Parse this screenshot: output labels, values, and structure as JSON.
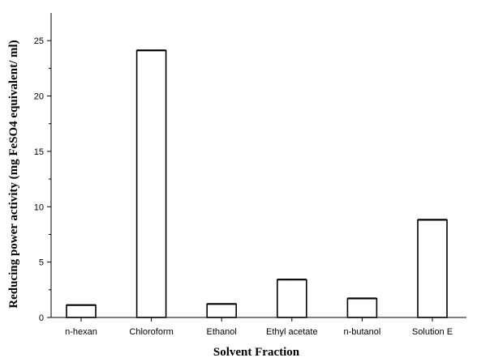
{
  "chart_data": {
    "type": "bar",
    "title": "",
    "xlabel": "Solvent Fraction",
    "ylabel": "Reducing power activity (mg FeSO4 equivalent/ ml)",
    "categories": [
      "n-hexan",
      "Chloroform",
      "Ethanol",
      "Ethyl acetate",
      "n-butanol",
      "Solution E"
    ],
    "values": [
      1.1,
      24.1,
      1.2,
      3.4,
      1.7,
      8.8
    ],
    "errors": [
      0.05,
      0.05,
      0.05,
      0.05,
      0.05,
      0.05
    ],
    "ylim": [
      0,
      27.5
    ],
    "yticks": [
      0,
      5,
      10,
      15,
      20,
      25
    ],
    "grid": false,
    "bar_color": "#ffffff",
    "edge_color": "#000000"
  }
}
